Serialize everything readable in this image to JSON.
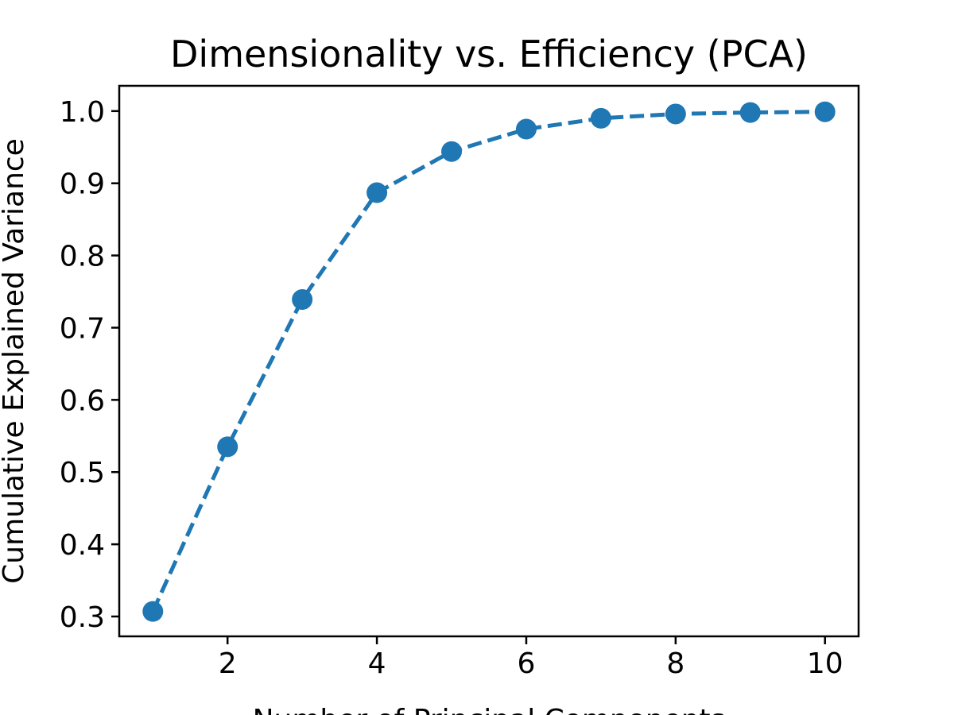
{
  "chart_data": {
    "type": "line",
    "title": "Dimensionality vs. Efficiency (PCA)",
    "xlabel": "Number of Principal Components",
    "ylabel": "Cumulative Explained Variance",
    "x": [
      1,
      2,
      3,
      4,
      5,
      6,
      7,
      8,
      9,
      10
    ],
    "series": [
      {
        "values": [
          0.307,
          0.535,
          0.739,
          0.887,
          0.944,
          0.975,
          0.99,
          0.996,
          0.998,
          0.999
        ],
        "color": "#1f77b4",
        "line_style": "dashed",
        "marker": "circle"
      }
    ],
    "xlim": [
      0.55,
      10.45
    ],
    "ylim": [
      0.2725,
      1.035
    ],
    "xticks": [
      2,
      4,
      6,
      8,
      10
    ],
    "xtick_labels": [
      "2",
      "4",
      "6",
      "8",
      "10"
    ],
    "yticks": [
      0.3,
      0.4,
      0.5,
      0.6,
      0.7,
      0.8,
      0.9,
      1.0
    ],
    "ytick_labels": [
      "0.3",
      "0.4",
      "0.5",
      "0.6",
      "0.7",
      "0.8",
      "0.9",
      "1.0"
    ],
    "grid": false,
    "legend": "none"
  }
}
